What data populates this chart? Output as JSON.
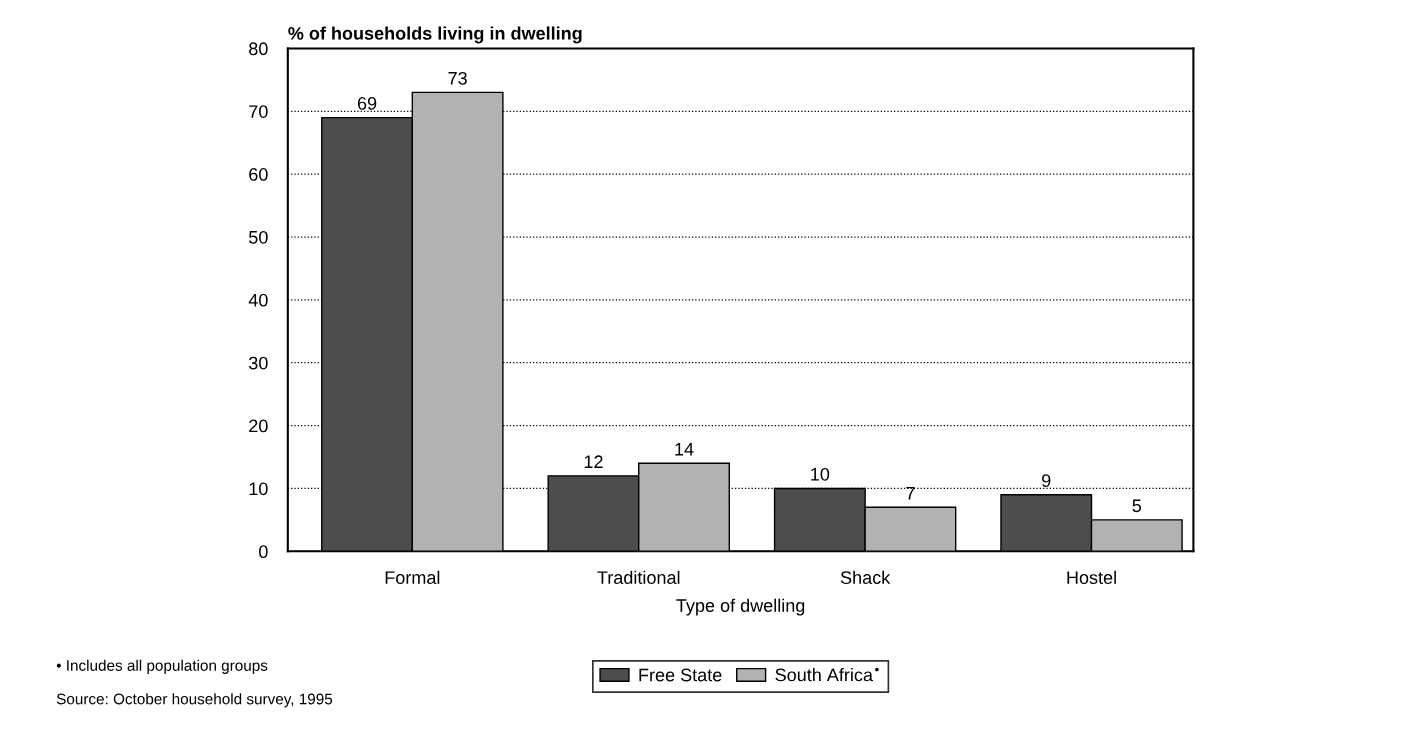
{
  "chart_data": {
    "type": "bar",
    "ylabel": "% of households living in dwelling",
    "xlabel": "Type of dwelling",
    "categories": [
      "Formal",
      "Traditional",
      "Shack",
      "Hostel"
    ],
    "series": [
      {
        "name": "Free State",
        "color": "#4d4d4d",
        "values": [
          69,
          12,
          10,
          9
        ]
      },
      {
        "name": "South Africa$^{•}$",
        "color": "#b2b2b2",
        "values": [
          73,
          14,
          7,
          5
        ]
      }
    ],
    "ylim": [
      0,
      80
    ],
    "yticks": [
      0,
      10,
      20,
      30,
      40,
      50,
      60,
      70,
      80
    ],
    "grid": "y",
    "legend": "bottom",
    "data_labels": true,
    "annotations": [
      "• Includes all population groups",
      "Source: October household survey, 1995"
    ]
  }
}
